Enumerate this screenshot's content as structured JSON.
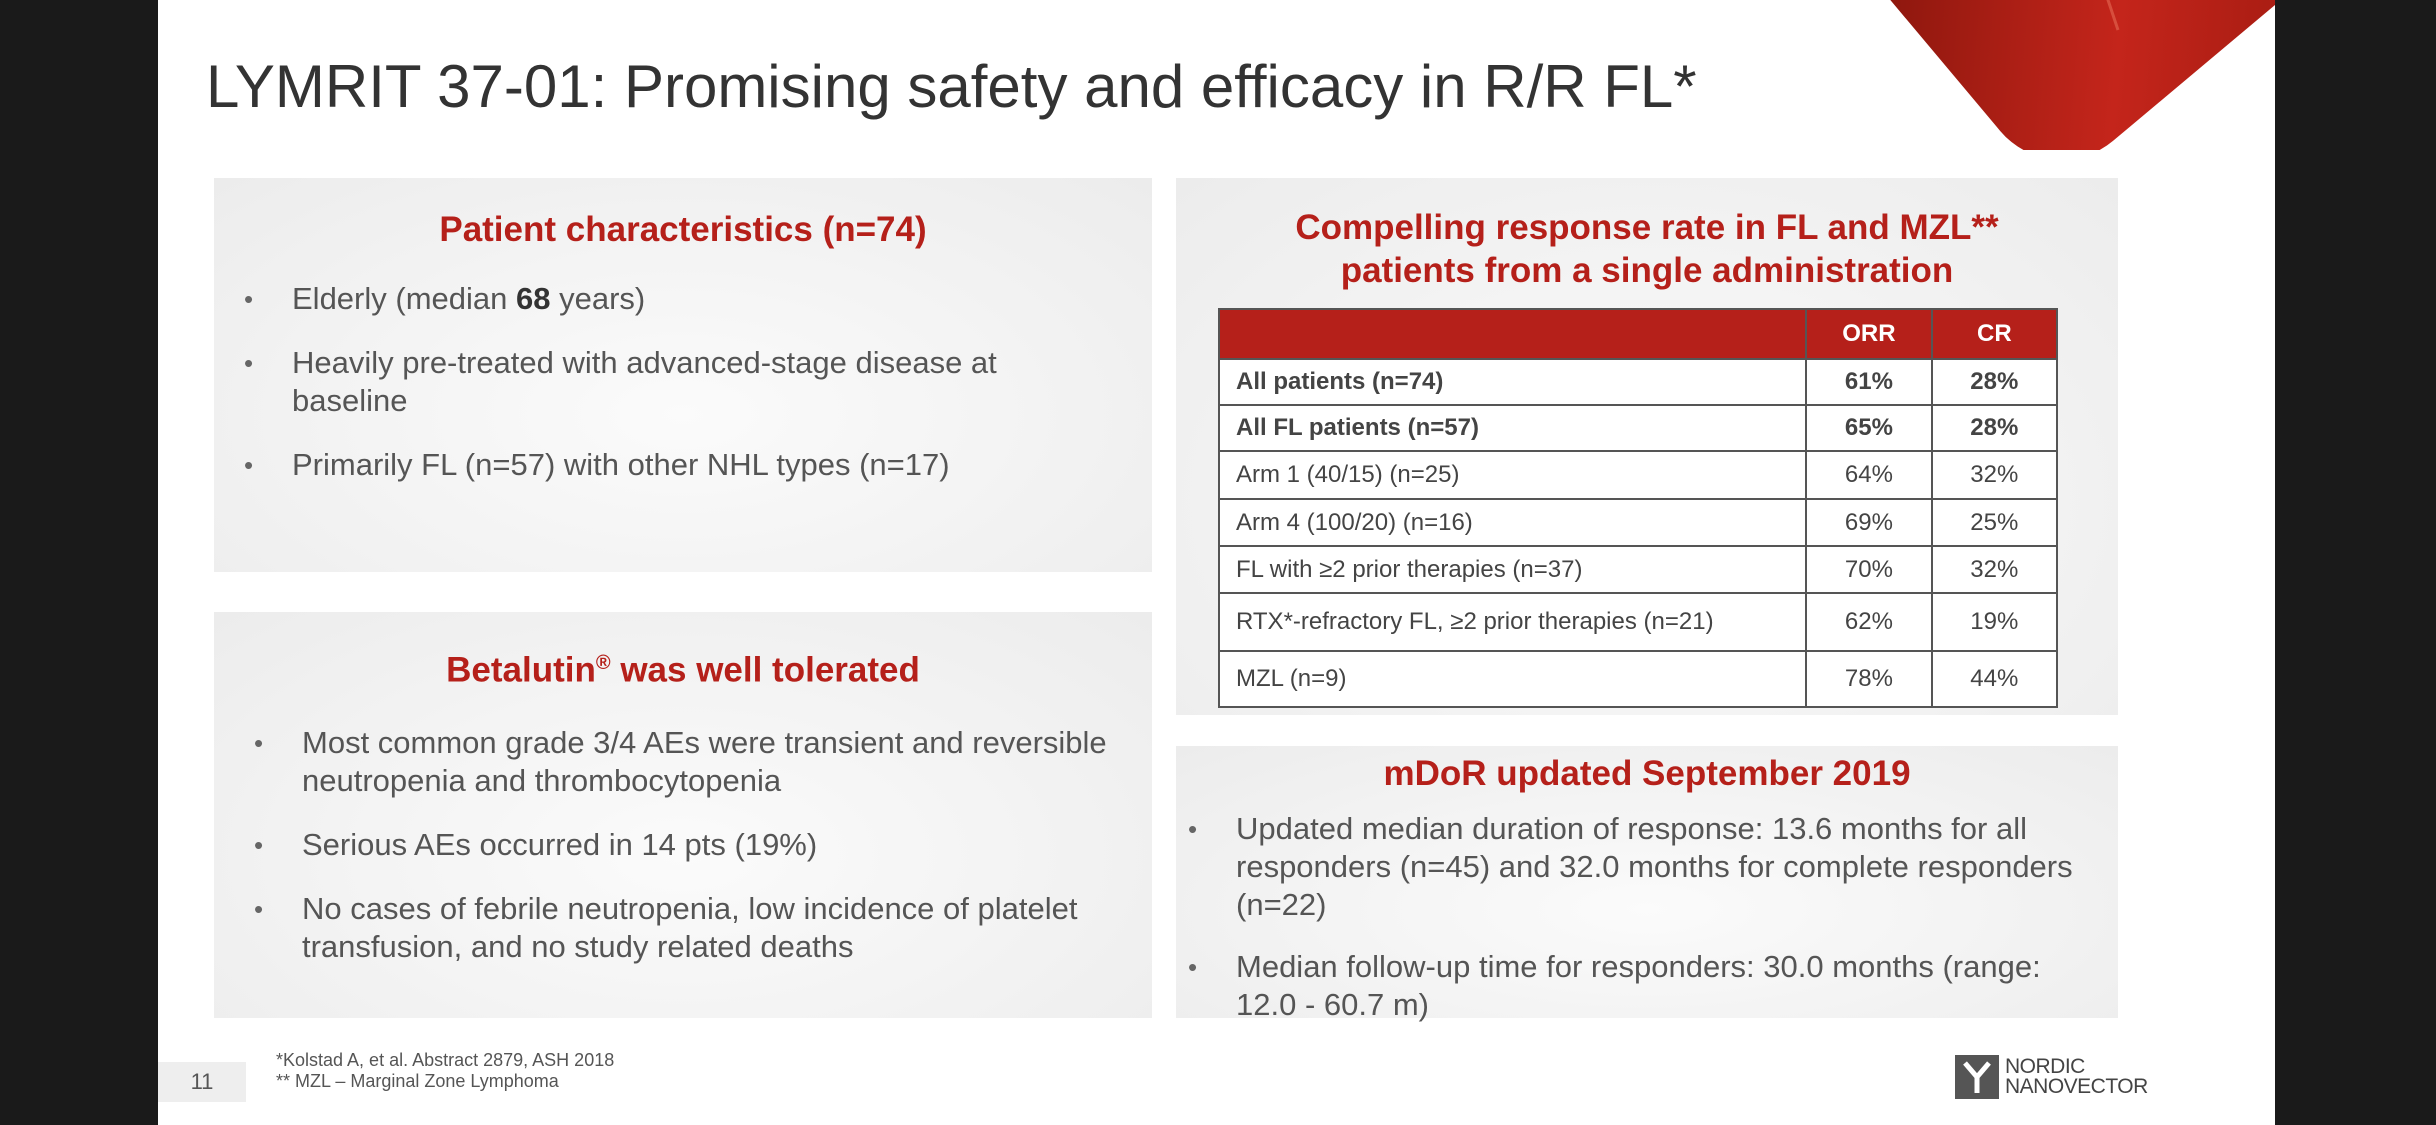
{
  "title": "LYMRIT 37-01:  Promising safety and efficacy in R/R FL*",
  "patient_panel": {
    "title": "Patient characteristics (n=74)",
    "bullet1_before": "Elderly (median ",
    "bullet1_bold": "68",
    "bullet1_after": " years)",
    "bullet2_line1": "Heavily pre-treated with advanced-stage disease at",
    "bullet2_line2": "baseline",
    "bullet3": "Primarily FL (n=57) with other NHL types (n=17)"
  },
  "safety_panel": {
    "title_main": "Betalutin",
    "title_sup": "®",
    "title_rest": " was well tolerated",
    "b1_l1": "Most common grade 3/4 AEs were transient and reversible",
    "b1_l2": "neutropenia and thrombocytopenia",
    "b2": "Serious AEs occurred in 14 pts (19%)",
    "b3_l1": "No cases of febrile neutropenia, low incidence of platelet",
    "b3_l2": "transfusion, and no study related deaths"
  },
  "response_panel": {
    "title_l1": "Compelling response rate in FL and MZL**",
    "title_l2": "patients from a single administration",
    "table": {
      "headers": [
        "",
        "ORR",
        "CR"
      ],
      "rows": [
        {
          "label": "All patients (n=74)",
          "orr": "61%",
          "cr": "28%"
        },
        {
          "label": "All FL patients (n=57)",
          "orr": "65%",
          "cr": "28%"
        },
        {
          "label": "Arm 1  (40/15) (n=25)",
          "orr": "64%",
          "cr": "32%"
        },
        {
          "label": "Arm 4  (100/20) (n=16)",
          "orr": "69%",
          "cr": "25%"
        },
        {
          "label": "FL with ≥2 prior therapies (n=37)",
          "orr": "70%",
          "cr": "32%"
        },
        {
          "label": "RTX*-refractory FL, ≥2 prior therapies  (n=21)",
          "orr": "62%",
          "cr": "19%"
        },
        {
          "label": "MZL (n=9)",
          "orr": "78%",
          "cr": "44%"
        }
      ]
    }
  },
  "mdor_panel": {
    "title": "mDoR updated September 2019",
    "b1_l1": "Updated median duration of response: 13.6 months for all",
    "b1_l2": "responders (n=45) and 32.0 months for complete responders",
    "b1_l3": "(n=22)",
    "b2_l1": "Median follow-up time for responders: 30.0 months (range:",
    "b2_l2": "12.0 - 60.7 m)"
  },
  "footnotes": {
    "line1": "*Kolstad A, et al. Abstract 2879, ASH 2018",
    "line2": "** MZL – Marginal Zone Lymphoma"
  },
  "page_number": "11",
  "logo": {
    "line1": "NORDIC",
    "line2": "NANOVECTOR"
  },
  "colors": {
    "accent": "#b5201a",
    "text": "#555555"
  }
}
